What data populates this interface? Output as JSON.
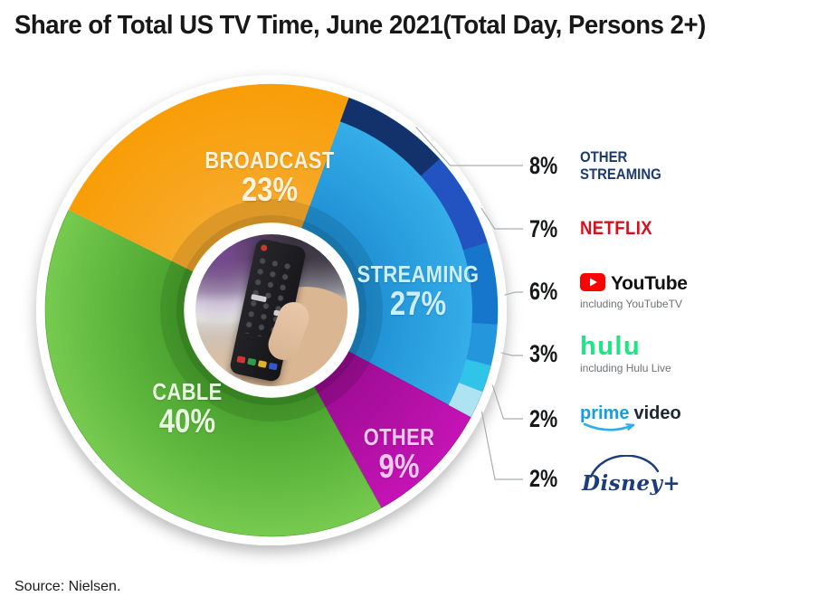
{
  "chart_data": {
    "type": "pie",
    "variant": "donut-with-breakdown-ring",
    "title": "Share of Total US TV Time, June 2021(Total Day, Persons 2+)",
    "source": "Source: Nielsen.",
    "center_image_alt": "hand holding TV remote control",
    "start_angle_deg": 20,
    "units": "% of total US TV time",
    "slices": [
      {
        "label": "STREAMING",
        "value": 27,
        "display": "27%",
        "colors": {
          "inner": "#1f8fd3",
          "outer": "#3ab5ee"
        },
        "label_color": "#cdeefb"
      },
      {
        "label": "OTHER",
        "value": 9,
        "display": "9%",
        "colors": {
          "inner": "#9c0d93",
          "outer": "#c513b5"
        },
        "label_color": "#f2c8ee"
      },
      {
        "label": "CABLE",
        "value": 40,
        "display": "40%",
        "colors": {
          "inner": "#47a12c",
          "outer": "#76cb4f"
        },
        "label_color": "#e9f7e2"
      },
      {
        "label": "BROADCAST",
        "value": 23,
        "display": "23%",
        "colors": {
          "inner": "#f7ab2e",
          "outer": "#f89d06"
        },
        "label_color": "#fdf3dc"
      }
    ],
    "breakdown_ring": [
      {
        "label": "OTHER STREAMING",
        "value": 8,
        "color": "#13316b"
      },
      {
        "label": "NETFLIX",
        "value": 7,
        "color": "#2353c0"
      },
      {
        "label": "YouTube",
        "value": 6,
        "color": "#1676cb"
      },
      {
        "label": "hulu",
        "value": 3,
        "color": "#2496dc"
      },
      {
        "label": "prime video",
        "value": 2,
        "color": "#30c5e8"
      },
      {
        "label": "Disney+",
        "value": 2,
        "color": "#aee3f4"
      }
    ],
    "legend": [
      {
        "pct": "8%",
        "brand": "OTHER\nSTREAMING",
        "color": "#1c3a6e"
      },
      {
        "pct": "7%",
        "brand": "NETFLIX",
        "color": "#d6101c"
      },
      {
        "pct": "6%",
        "brand": "YouTube",
        "note": "including YouTubeTV",
        "color": "#111111"
      },
      {
        "pct": "3%",
        "brand": "hulu",
        "note": "including Hulu Live",
        "color": "#1ce783"
      },
      {
        "pct": "2%",
        "brand": "prime video",
        "brand_parts": [
          "prime",
          "video"
        ],
        "color": "#189fdb"
      },
      {
        "pct": "2%",
        "brand": "Disney+",
        "color": "#1d3d7a"
      }
    ]
  }
}
